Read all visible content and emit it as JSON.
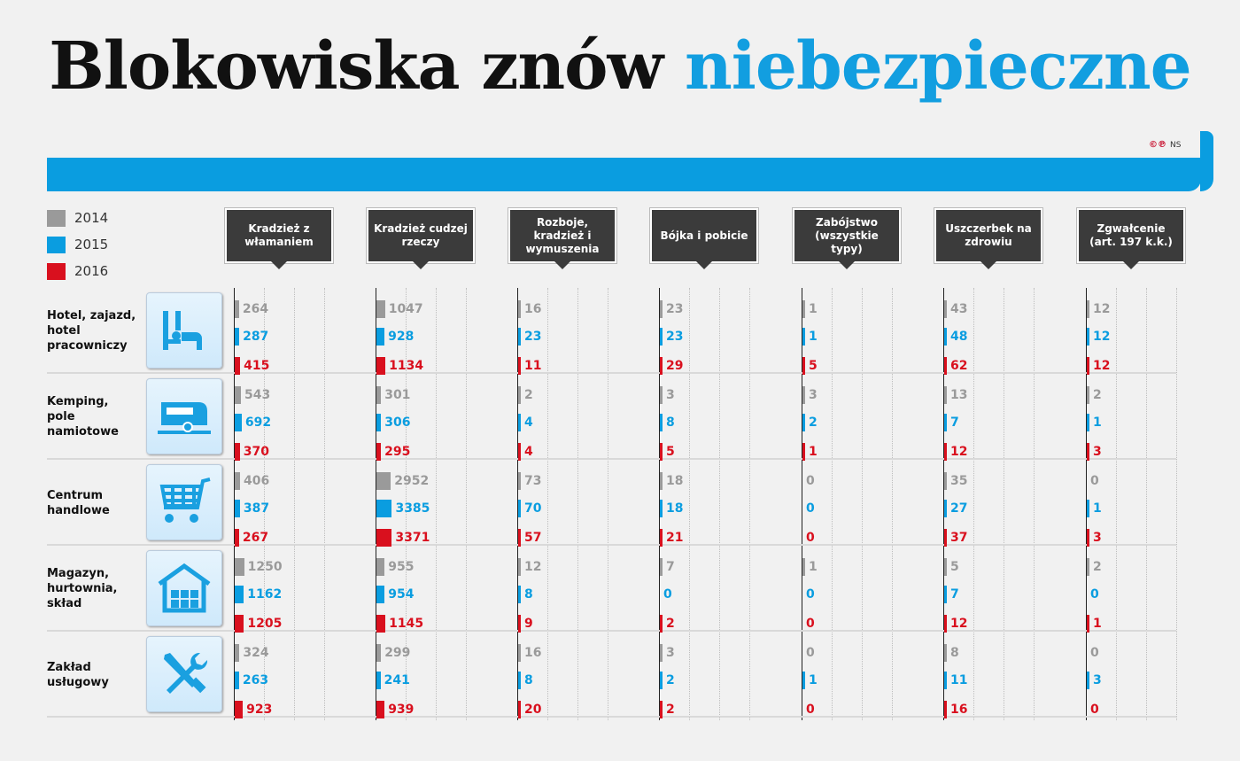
{
  "title": {
    "part1": "Blokowiska znów",
    "part2": "niebezpieczne"
  },
  "credit": {
    "mark": "©℗",
    "author": "NS"
  },
  "colors": {
    "2014": "#9a9a9a",
    "2015": "#0a9de0",
    "2016": "#d9101e",
    "accent": "#129ee0"
  },
  "legend": [
    "2014",
    "2015",
    "2016"
  ],
  "chart_data": {
    "type": "bar",
    "columns": [
      "Kradzież z włamaniem",
      "Kradzież cudzej rzeczy",
      "Rozboje, kradzież i wymuszenia",
      "Bójka i pobicie",
      "Zabójstwo (wszystkie typy)",
      "Uszczerbek na zdrowiu",
      "Zgwałcenie (art. 197 k.k.)"
    ],
    "categories": [
      {
        "name": "Hotel, zajazd, hotel pracowniczy",
        "icon": "bed-icon",
        "values": [
          [
            264,
            287,
            415
          ],
          [
            1047,
            928,
            1134
          ],
          [
            16,
            23,
            11
          ],
          [
            23,
            23,
            29
          ],
          [
            1,
            1,
            5
          ],
          [
            43,
            48,
            62
          ],
          [
            12,
            12,
            12
          ]
        ]
      },
      {
        "name": "Kemping, pole namiotowe",
        "icon": "caravan-icon",
        "values": [
          [
            543,
            692,
            370
          ],
          [
            301,
            306,
            295
          ],
          [
            2,
            4,
            4
          ],
          [
            3,
            8,
            5
          ],
          [
            3,
            2,
            1
          ],
          [
            13,
            7,
            12
          ],
          [
            2,
            1,
            3
          ]
        ]
      },
      {
        "name": "Centrum handlowe",
        "icon": "shopping-cart-icon",
        "values": [
          [
            406,
            387,
            267
          ],
          [
            2952,
            3385,
            3371
          ],
          [
            73,
            70,
            57
          ],
          [
            18,
            18,
            21
          ],
          [
            0,
            0,
            0
          ],
          [
            35,
            27,
            37
          ],
          [
            0,
            1,
            3
          ]
        ]
      },
      {
        "name": "Magazyn, hurtownia, skład",
        "icon": "warehouse-icon",
        "values": [
          [
            1250,
            1162,
            1205
          ],
          [
            955,
            954,
            1145
          ],
          [
            12,
            8,
            9
          ],
          [
            7,
            0,
            2
          ],
          [
            1,
            0,
            0
          ],
          [
            5,
            7,
            12
          ],
          [
            2,
            0,
            1
          ]
        ]
      },
      {
        "name": "Zakład usługowy",
        "icon": "tools-icon",
        "values": [
          [
            324,
            263,
            923
          ],
          [
            299,
            241,
            939
          ],
          [
            16,
            8,
            20
          ],
          [
            3,
            2,
            2
          ],
          [
            0,
            1,
            0
          ],
          [
            8,
            11,
            16
          ],
          [
            0,
            3,
            0
          ]
        ]
      }
    ],
    "series": [
      {
        "name": "2014"
      },
      {
        "name": "2015"
      },
      {
        "name": "2016"
      }
    ]
  }
}
